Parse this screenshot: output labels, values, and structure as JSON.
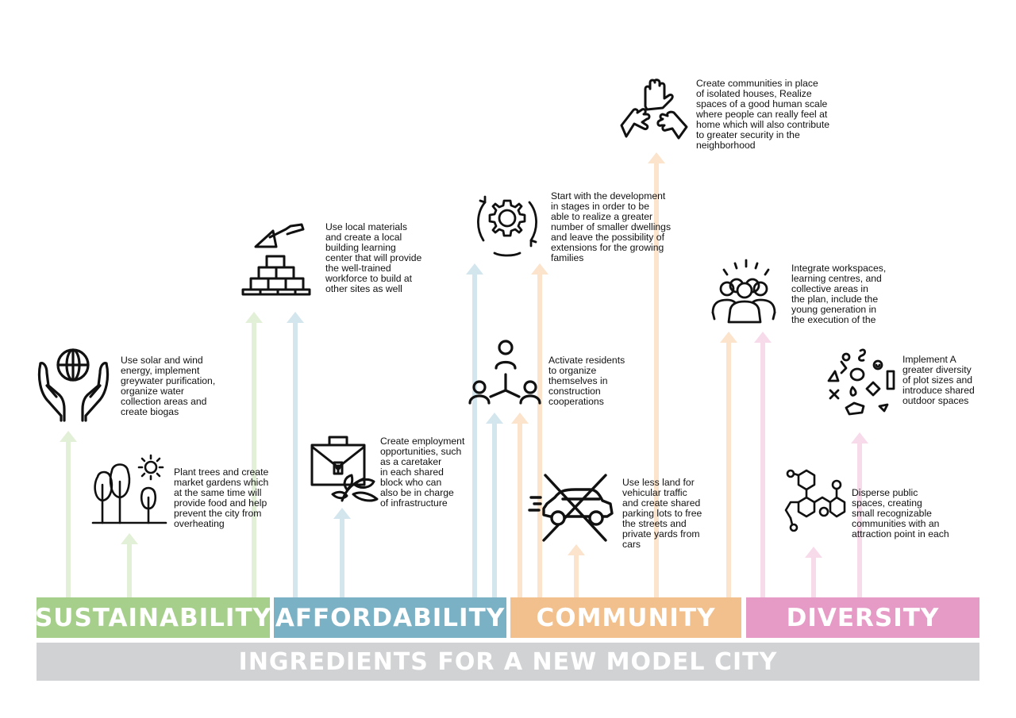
{
  "colors": {
    "sustainability": "#a7cf8c",
    "sustainability_light": "#e3f0d8",
    "affordability": "#7ab1c4",
    "affordability_light": "#d3e6ee",
    "community": "#f2c08c",
    "community_light": "#fbe3cc",
    "diversity": "#e59bc6",
    "diversity_light": "#f7dbea",
    "footer": "#d1d2d3"
  },
  "categories": {
    "sustainability": "SUSTAINABILITY",
    "affordability": "AFFORDABILITY",
    "community": "COMMUNITY",
    "diversity": "DIVERSITY"
  },
  "footer": "INGREDIENTS FOR A NEW MODEL CITY",
  "items": {
    "solar": "Use solar and wind\nenergy, implement\ngreywater purification,\norganize  water\ncollection areas and\ncreate biogas",
    "trees": "Plant trees and create\nmarket gardens which\nat the same time will\nprovide food and help\nprevent the city from\noverheating",
    "materials": "Use local materials\nand create a local\nbuilding learning\ncenter that will provide\nthe well-trained\nworkforce to build at\nother sites as well",
    "employment": "Create employment\nopportunities, such\nas a caretaker\nin each shared\nblock who can\nalso be in charge\nof infrastructure",
    "stages": "Start with the development\nin stages in order to be\nable to realize a greater\nnumber of smaller dwellings\nand leave the possibility of\nextensions for the growing\nfamilies",
    "residents": "Activate residents\nto organize\nthemselves in\nconstruction\ncooperations",
    "communities": "Create communities in place\nof isolated houses, Realize\nspaces of a good human scale\nwhere people can really feel at\nhome which will also contribute\nto greater security in the\nneighborhood",
    "land": "Use less land for\nvehicular traffic\nand create shared\nparking lots to free\nthe streets and\nprivate yards from\ncars",
    "workspaces": "Integrate workspaces,\nlearning centres, and\ncollective areas in\nthe plan, include the\nyoung generation in\nthe execution of the",
    "plots": "Implement A\ngreater diversity\nof plot sizes and\nintroduce shared\noutdoor spaces",
    "public": "Disperse public\nspaces, creating\nsmall recognizable\ncommunities with an\nattraction point in each"
  },
  "icons": [
    "hands-globe-icon",
    "trees-sun-icon",
    "trowel-bricks-icon",
    "briefcase-leaf-icon",
    "gear-cycle-icon",
    "people-network-icon",
    "three-hands-icon",
    "crossed-car-icon",
    "crowd-icon",
    "shapes-icon",
    "molecule-icon"
  ]
}
